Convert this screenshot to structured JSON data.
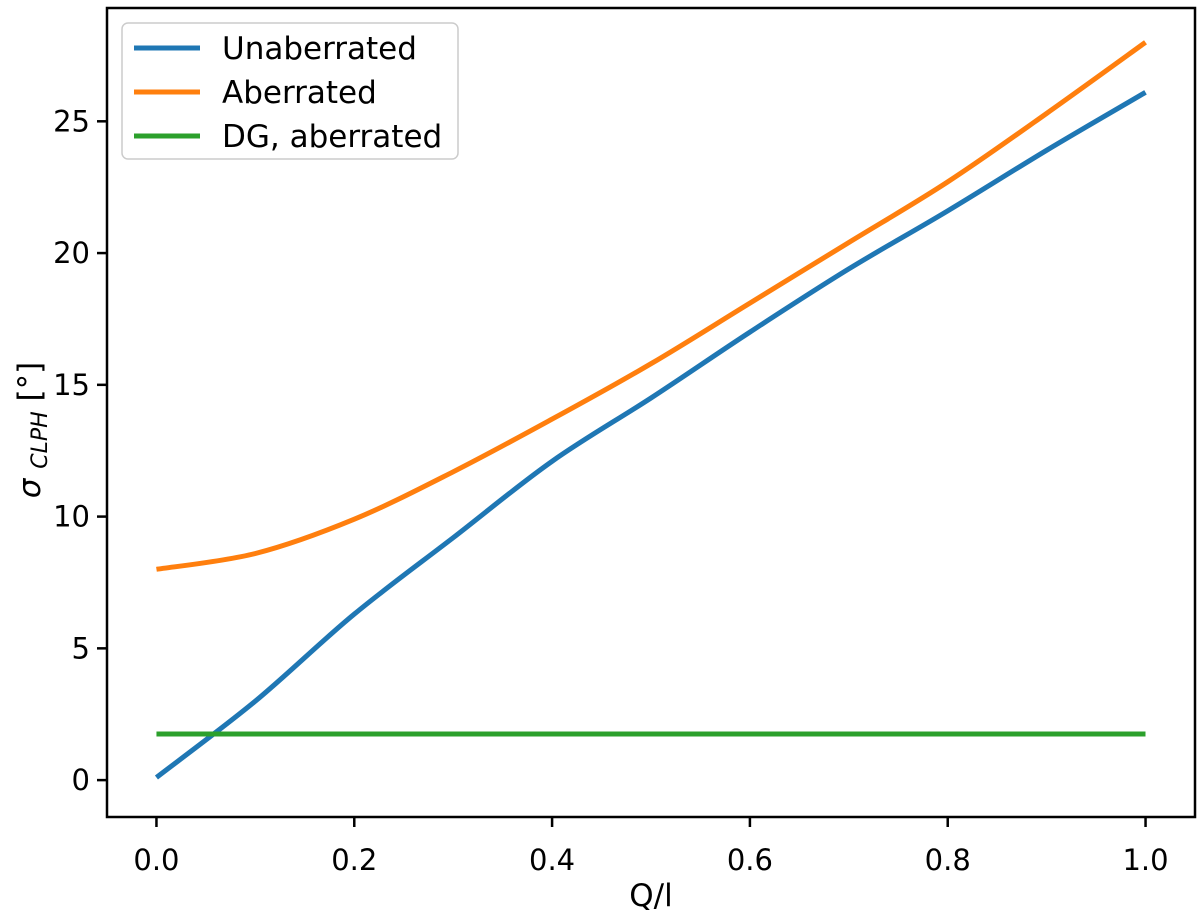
{
  "figure": {
    "background": "#ffffff",
    "axis_color": "#000000"
  },
  "chart_data": {
    "type": "line",
    "title": "",
    "xlabel": "Q/l",
    "ylabel": "σ_CLPH[°]",
    "ylabel_parts": {
      "symbol": "σ",
      "subscript": "CLPH",
      "unit": "[°]"
    },
    "x": [
      0.0,
      0.1,
      0.2,
      0.3,
      0.4,
      0.5,
      0.6,
      0.7,
      0.8,
      0.9,
      1.0
    ],
    "series": [
      {
        "name": "Unaberrated",
        "color": "#1f77b4",
        "values": [
          0.1,
          3.0,
          6.3,
          9.2,
          12.1,
          14.5,
          17.0,
          19.4,
          21.6,
          23.9,
          26.1
        ]
      },
      {
        "name": "Aberrated",
        "color": "#ff7f0e",
        "values": [
          8.0,
          8.6,
          9.9,
          11.7,
          13.7,
          15.8,
          18.1,
          20.4,
          22.7,
          25.3,
          28.0
        ]
      },
      {
        "name": "DG, aberrated",
        "color": "#2ca02c",
        "values": [
          1.75,
          1.75,
          1.75,
          1.75,
          1.75,
          1.75,
          1.75,
          1.75,
          1.75,
          1.75,
          1.75
        ]
      }
    ],
    "xlim": [
      -0.05,
      1.05
    ],
    "ylim": [
      -1.4,
      29.3
    ],
    "xticks": {
      "values": [
        0.0,
        0.2,
        0.4,
        0.6,
        0.8,
        1.0
      ],
      "labels": [
        "0.0",
        "0.2",
        "0.4",
        "0.6",
        "0.8",
        "1.0"
      ]
    },
    "yticks": {
      "values": [
        0,
        5,
        10,
        15,
        20,
        25
      ],
      "labels": [
        "0",
        "5",
        "10",
        "15",
        "20",
        "25"
      ]
    },
    "grid": false,
    "legend": {
      "position": "upper left",
      "entries": [
        "Unaberrated",
        "Aberrated",
        "DG, aberrated"
      ]
    }
  }
}
